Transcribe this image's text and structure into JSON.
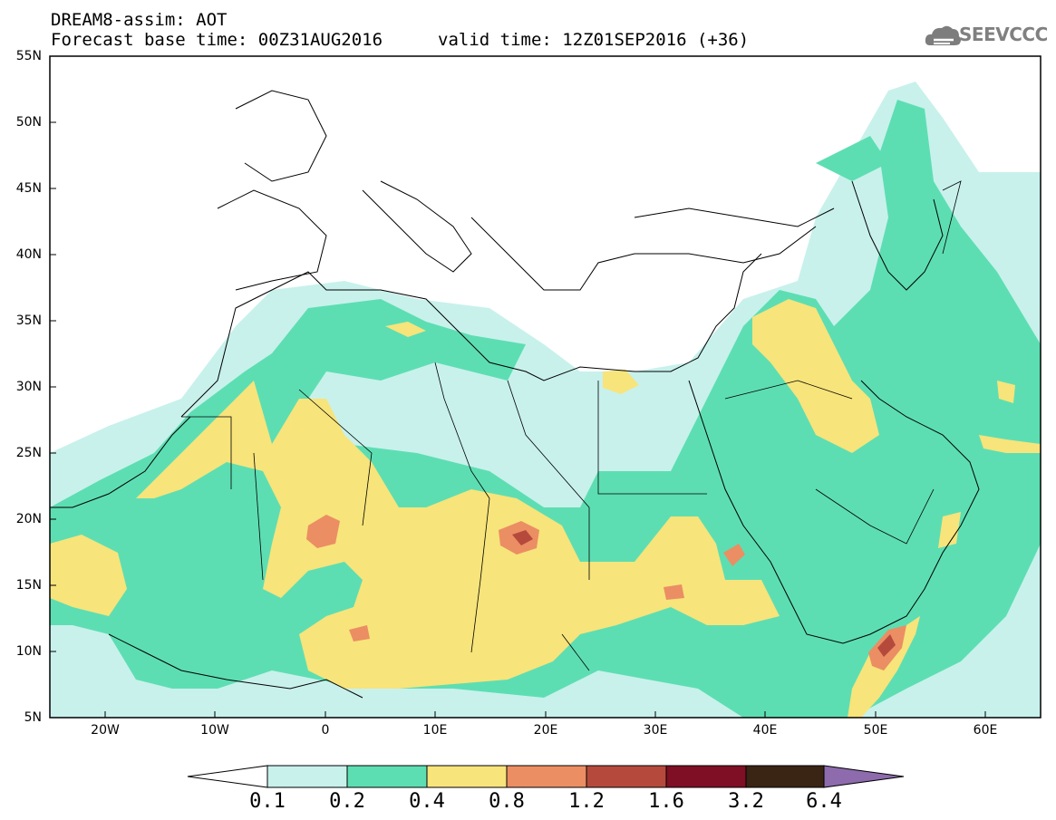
{
  "title": {
    "line1": "DREAM8-assim: AOT",
    "line2": "Forecast base time: 00Z31AUG2016",
    "line3": "valid time: 12Z01SEP2016 (+36)"
  },
  "logo": {
    "text": "SEEVCCC",
    "icon": "cloud-icon"
  },
  "map": {
    "region": "North Africa, Mediterranean, Middle East",
    "lat_range": [
      5,
      55
    ],
    "lon_range": [
      -25,
      65
    ],
    "lat_labels": [
      "55N",
      "50N",
      "45N",
      "40N",
      "35N",
      "30N",
      "25N",
      "20N",
      "15N",
      "10N",
      "5N"
    ],
    "lon_labels": [
      "20W",
      "10W",
      "0",
      "10E",
      "20E",
      "30E",
      "40E",
      "50E",
      "60E"
    ]
  },
  "colorbar": {
    "labels": [
      "0.1",
      "0.2",
      "0.4",
      "0.8",
      "1.2",
      "1.6",
      "3.2",
      "6.4"
    ],
    "colors": [
      "#ffffff",
      "#c8f1ec",
      "#5ddeb2",
      "#f7e47b",
      "#eb8e63",
      "#b54a3c",
      "#7f0f24",
      "#3a2414",
      "#8d6bac"
    ]
  }
}
